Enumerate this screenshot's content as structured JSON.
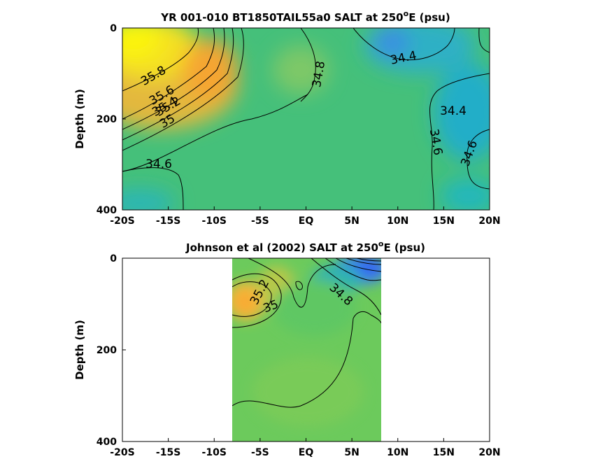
{
  "chart_data": [
    {
      "type": "heatmap",
      "title": "YR 001-010 BT1850TAIL55a0 SALT at 250",
      "title_sup": "o",
      "title_suffix": "E (psu)",
      "ylabel": "Depth (m)",
      "xlabel": "",
      "x_ticks": [
        "-20S",
        "-15S",
        "-10S",
        "-5S",
        "EQ",
        "5N",
        "10N",
        "15N",
        "20N"
      ],
      "y_ticks": [
        "0",
        "200",
        "400"
      ],
      "xlim": [
        -20,
        20
      ],
      "ylim": [
        0,
        400
      ],
      "y_reversed": true,
      "data_extent_lat": [
        -20,
        20
      ],
      "contour_labels": [
        "35.8",
        "35.6",
        "35.4",
        "35.2",
        "35",
        "34.8",
        "34.4",
        "34.4",
        "34.6",
        "34.6",
        "34.6"
      ],
      "colormap": "parula",
      "colors": {
        "high": "#f9fb0e",
        "mid": "#3fc180",
        "low": "#3d6ef0"
      }
    },
    {
      "type": "heatmap",
      "title": "Johnson et al (2002) SALT at 250",
      "title_sup": "o",
      "title_suffix": "E (psu)",
      "ylabel": "Depth (m)",
      "xlabel": "",
      "x_ticks": [
        "-20S",
        "-15S",
        "-10S",
        "-5S",
        "EQ",
        "5N",
        "10N",
        "15N",
        "20N"
      ],
      "y_ticks": [
        "0",
        "200",
        "400"
      ],
      "xlim": [
        -20,
        20
      ],
      "ylim": [
        0,
        400
      ],
      "y_reversed": true,
      "data_extent_lat": [
        -8,
        8
      ],
      "contour_labels": [
        "35.2",
        "35",
        "34.8"
      ],
      "colormap": "parula",
      "colors": {
        "high": "#f9fb0e",
        "mid": "#3fc180",
        "low": "#3d6ef0"
      }
    }
  ]
}
